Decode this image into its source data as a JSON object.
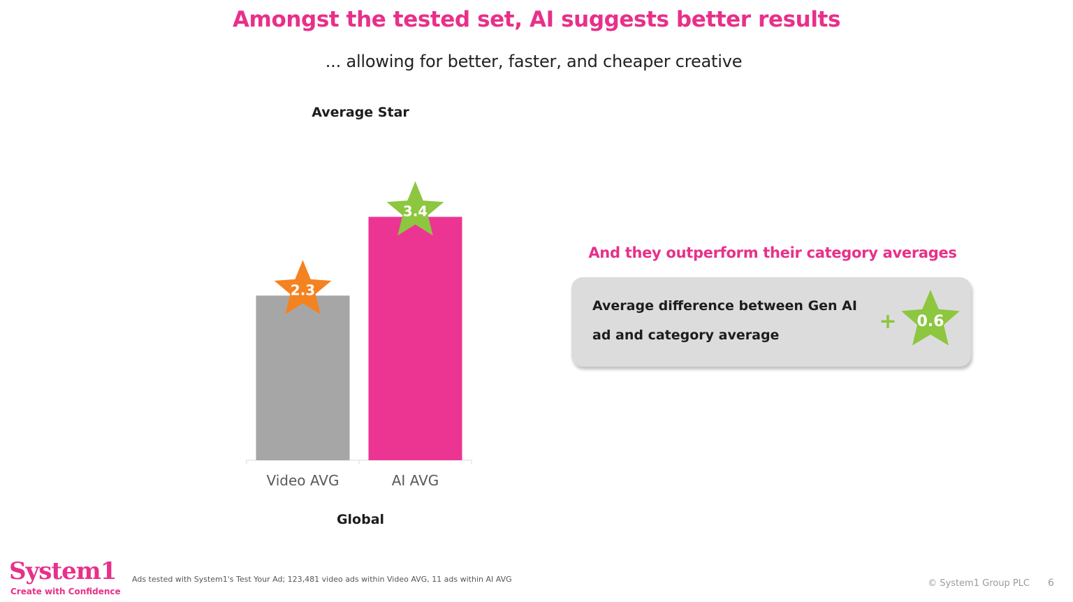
{
  "slide": {
    "title": "Amongst the tested set, AI suggests better results",
    "subtitle": "... allowing for better, faster, and cheaper creative",
    "page_number": "6"
  },
  "chart_data": {
    "type": "bar",
    "title": "Average Star",
    "xlabel": "Global",
    "ylabel": "",
    "categories": [
      "Video AVG",
      "AI AVG"
    ],
    "values": [
      2.3,
      3.4
    ],
    "data_labels": [
      "2.3",
      "3.4"
    ],
    "ylim": [
      0,
      4
    ],
    "grid": false,
    "bar_colors": [
      "#a6a6a6",
      "#ec3593"
    ],
    "star_colors": [
      "#f58220",
      "#8dc63f"
    ]
  },
  "comparison": {
    "heading": "And they outperform their category averages",
    "text": "Average difference between Gen AI ad and category average",
    "sign": "+",
    "value": "0.6",
    "star_color": "#8dc63f"
  },
  "footer": {
    "logo": "System1",
    "tagline": "Create with Confidence",
    "footnote": "Ads tested with System1's Test Your Ad; 123,481 video ads within Video AVG, 11 ads within AI AVG",
    "copyright": "© System1 Group PLC"
  },
  "colors": {
    "accent_pink": "#e8308a",
    "green": "#8dc63f",
    "orange": "#f58220",
    "gray": "#a6a6a6"
  }
}
